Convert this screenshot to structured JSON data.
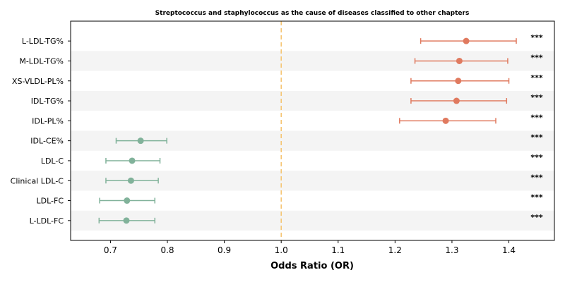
{
  "chart_data": {
    "type": "forest",
    "title": "Streptococcus and staphylococcus as the cause of diseases classified to other chapters",
    "xlabel": "Odds Ratio (OR)",
    "ylabel": "",
    "xlim": [
      0.63,
      1.48
    ],
    "xticks": [
      "0.7",
      "0.8",
      "0.9",
      "1.0",
      "1.1",
      "1.2",
      "1.3",
      "1.4"
    ],
    "reference_line": 1.0,
    "reference_color": "#f5c26b",
    "colors": {
      "risk": "#e07a5f",
      "protective": "#81b29a"
    },
    "row_stripe_color": "#f4f4f4",
    "rows": [
      {
        "label": "L-LDL-TG%",
        "or": 1.325,
        "lo": 1.245,
        "hi": 1.413,
        "sig": "***",
        "group": "risk"
      },
      {
        "label": "M-LDL-TG%",
        "or": 1.313,
        "lo": 1.235,
        "hi": 1.398,
        "sig": "***",
        "group": "risk"
      },
      {
        "label": "XS-VLDL-PL%",
        "or": 1.311,
        "lo": 1.228,
        "hi": 1.4,
        "sig": "***",
        "group": "risk"
      },
      {
        "label": "IDL-TG%",
        "or": 1.308,
        "lo": 1.228,
        "hi": 1.396,
        "sig": "***",
        "group": "risk"
      },
      {
        "label": "IDL-PL%",
        "or": 1.289,
        "lo": 1.208,
        "hi": 1.377,
        "sig": "***",
        "group": "risk"
      },
      {
        "label": "IDL-CE%",
        "or": 0.753,
        "lo": 0.71,
        "hi": 0.799,
        "sig": "***",
        "group": "protective"
      },
      {
        "label": "LDL-C",
        "or": 0.738,
        "lo": 0.692,
        "hi": 0.787,
        "sig": "***",
        "group": "protective"
      },
      {
        "label": "Clinical LDL-C",
        "or": 0.736,
        "lo": 0.692,
        "hi": 0.784,
        "sig": "***",
        "group": "protective"
      },
      {
        "label": "LDL-FC",
        "or": 0.729,
        "lo": 0.681,
        "hi": 0.778,
        "sig": "***",
        "group": "protective"
      },
      {
        "label": "L-LDL-FC",
        "or": 0.728,
        "lo": 0.68,
        "hi": 0.778,
        "sig": "***",
        "group": "protective"
      }
    ]
  }
}
